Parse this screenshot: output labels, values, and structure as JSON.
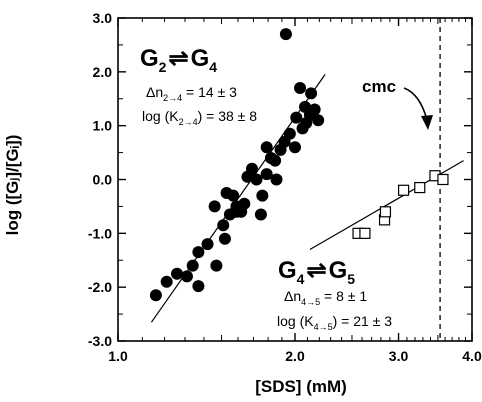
{
  "chart_data": {
    "type": "scatter",
    "xscale": "log",
    "xlabel": "[SDS] (mM)",
    "ylabel": "log ([Gⱼ]/[Gᵢ])",
    "xlim": [
      1.0,
      4.0
    ],
    "ylim": [
      -3.0,
      3.0
    ],
    "xticks": [
      {
        "value": 1.0,
        "label": "1.0"
      },
      {
        "value": 2.0,
        "label": "2.0"
      },
      {
        "value": 3.0,
        "label": "3.0"
      },
      {
        "value": 4.0,
        "label": "4.0"
      }
    ],
    "yticks": [
      {
        "value": -3.0,
        "label": "-3.0"
      },
      {
        "value": -2.0,
        "label": "-2.0"
      },
      {
        "value": -1.0,
        "label": "-1.0"
      },
      {
        "value": 0.0,
        "label": "0.0"
      },
      {
        "value": 1.0,
        "label": "1.0"
      },
      {
        "value": 2.0,
        "label": "2.0"
      },
      {
        "value": 3.0,
        "label": "3.0"
      }
    ],
    "series": [
      {
        "marker": "filled-circle",
        "points": [
          {
            "x": 1.16,
            "y": -2.15
          },
          {
            "x": 1.21,
            "y": -1.9
          },
          {
            "x": 1.26,
            "y": -1.75
          },
          {
            "x": 1.31,
            "y": -1.8
          },
          {
            "x": 1.34,
            "y": -1.6
          },
          {
            "x": 1.37,
            "y": -1.98
          },
          {
            "x": 1.37,
            "y": -1.35
          },
          {
            "x": 1.42,
            "y": -1.2
          },
          {
            "x": 1.46,
            "y": -0.5
          },
          {
            "x": 1.47,
            "y": -1.6
          },
          {
            "x": 1.51,
            "y": -0.85
          },
          {
            "x": 1.52,
            "y": -1.1
          },
          {
            "x": 1.53,
            "y": -0.25
          },
          {
            "x": 1.55,
            "y": -0.65
          },
          {
            "x": 1.57,
            "y": -0.3
          },
          {
            "x": 1.59,
            "y": -0.6
          },
          {
            "x": 1.59,
            "y": -0.5
          },
          {
            "x": 1.62,
            "y": -0.6
          },
          {
            "x": 1.64,
            "y": -0.45
          },
          {
            "x": 1.66,
            "y": 0.05
          },
          {
            "x": 1.69,
            "y": 0.2
          },
          {
            "x": 1.72,
            "y": 0.0
          },
          {
            "x": 1.75,
            "y": -0.65
          },
          {
            "x": 1.76,
            "y": -0.3
          },
          {
            "x": 1.79,
            "y": 0.6
          },
          {
            "x": 1.79,
            "y": 0.1
          },
          {
            "x": 1.82,
            "y": 0.4
          },
          {
            "x": 1.85,
            "y": 0.35
          },
          {
            "x": 1.86,
            "y": 0.0
          },
          {
            "x": 1.89,
            "y": 0.55
          },
          {
            "x": 1.92,
            "y": 0.7
          },
          {
            "x": 1.93,
            "y": 2.7
          },
          {
            "x": 1.96,
            "y": 0.85
          },
          {
            "x": 2.0,
            "y": 0.6
          },
          {
            "x": 2.01,
            "y": 1.15
          },
          {
            "x": 2.04,
            "y": 1.7
          },
          {
            "x": 2.06,
            "y": 0.95
          },
          {
            "x": 2.08,
            "y": 1.35
          },
          {
            "x": 2.09,
            "y": 1.05
          },
          {
            "x": 2.12,
            "y": 1.2
          },
          {
            "x": 2.13,
            "y": 1.6
          },
          {
            "x": 2.16,
            "y": 1.3
          },
          {
            "x": 2.19,
            "y": 1.1
          }
        ],
        "fit": {
          "x": [
            1.14,
            2.25
          ],
          "y": [
            -2.65,
            1.95
          ]
        }
      },
      {
        "marker": "open-square",
        "points": [
          {
            "x": 2.56,
            "y": -1.0
          },
          {
            "x": 2.63,
            "y": -1.0
          },
          {
            "x": 2.84,
            "y": -0.75
          },
          {
            "x": 2.85,
            "y": -0.6
          },
          {
            "x": 3.06,
            "y": -0.2
          },
          {
            "x": 3.26,
            "y": -0.15
          },
          {
            "x": 3.46,
            "y": 0.07
          },
          {
            "x": 3.57,
            "y": 0.0
          }
        ],
        "fit": {
          "x": [
            2.12,
            3.87
          ],
          "y": [
            -1.3,
            0.35
          ]
        }
      }
    ],
    "reference_lines": [
      {
        "orientation": "vertical",
        "x": 3.53,
        "style": "dashed"
      }
    ],
    "annotations": {
      "eq1": {
        "left_main": "G",
        "left_sub": "2",
        "arrow": "⇌",
        "right_main": "G",
        "right_sub": "4"
      },
      "eq1_dn": {
        "lead": "Δn",
        "sub": "2→4",
        "tail": " = 14 ± 3"
      },
      "eq1_k": {
        "lead": "log (K",
        "sub": "2→4",
        "tail": ") = 38 ± 8"
      },
      "eq2": {
        "left_main": "G",
        "left_sub": "4",
        "arrow": "⇌",
        "right_main": "G",
        "right_sub": "5"
      },
      "eq2_dn": {
        "lead": "Δn",
        "sub": "4→5",
        "tail": " = 8 ± 1"
      },
      "eq2_k": {
        "lead": "log (K",
        "sub": "4→5",
        "tail": ") = 21 ± 3"
      },
      "cmc": "cmc"
    }
  }
}
